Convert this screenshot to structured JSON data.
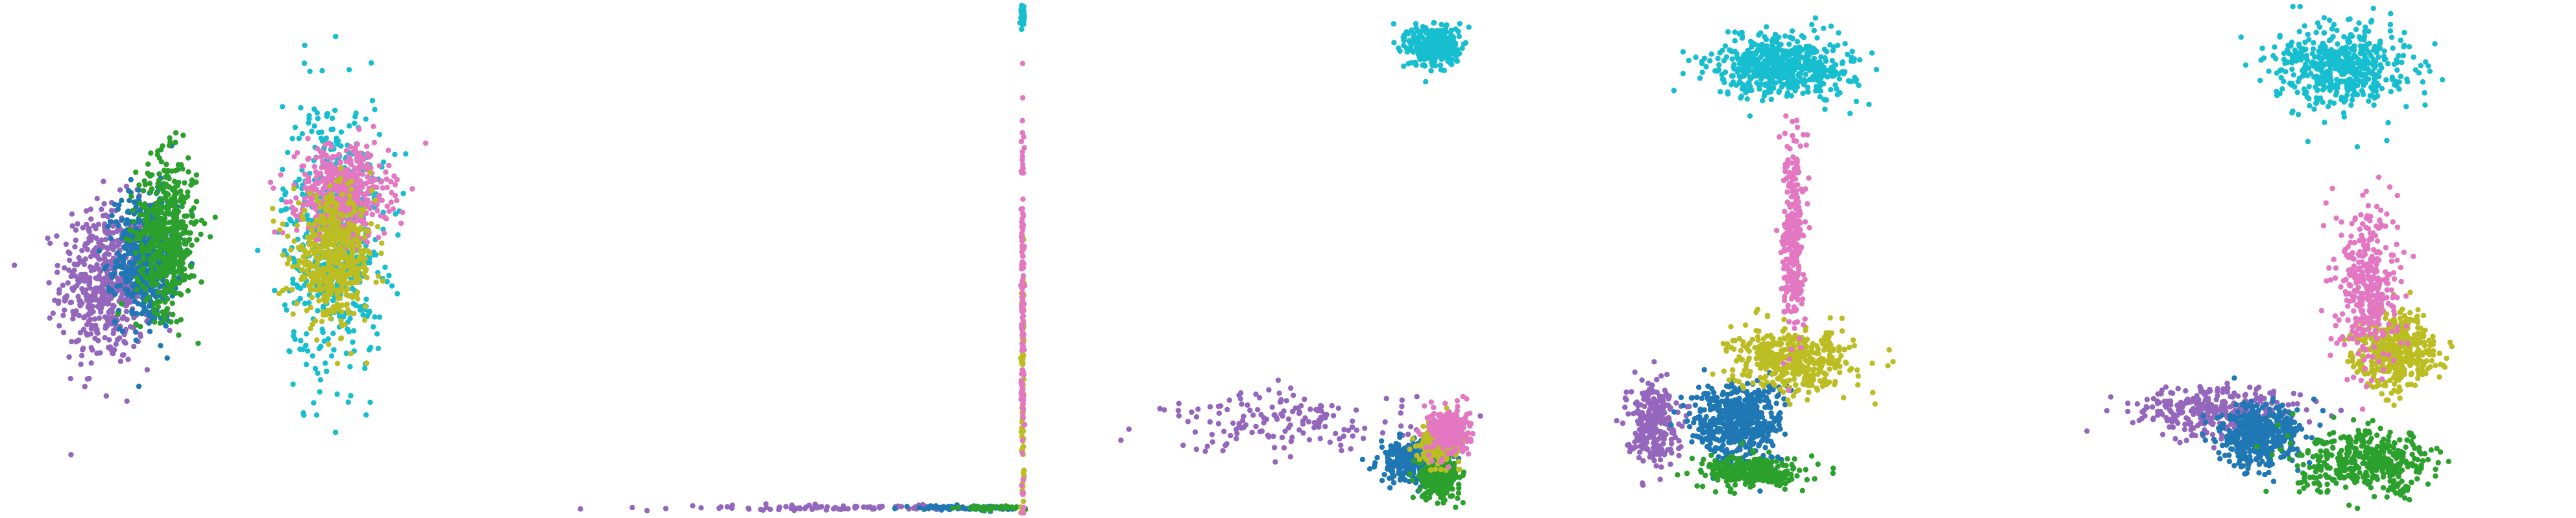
{
  "colors": {
    "purple": "#9467bd",
    "blue": "#1f77b4",
    "green": "#2ca02c",
    "cyan": "#17becf",
    "pink": "#e377c2",
    "olive": "#bcbd22"
  },
  "chart_data": [
    {
      "type": "scatter",
      "title": "",
      "xlabel": "",
      "ylabel": "",
      "axes": "hidden",
      "grid": false,
      "legend": "none",
      "xlim": [
        0,
        100
      ],
      "ylim": [
        0,
        100
      ],
      "clusters": [
        {
          "color": "purple",
          "center": [
            20,
            45
          ],
          "spread": [
            9,
            16
          ],
          "count": 520
        },
        {
          "color": "blue",
          "center": [
            28,
            50
          ],
          "spread": [
            6,
            13
          ],
          "count": 520
        },
        {
          "color": "green",
          "center": [
            32,
            55
          ],
          "spread": [
            6,
            15
          ],
          "count": 520
        },
        {
          "color": "cyan",
          "center": [
            65,
            55
          ],
          "spread": [
            10,
            27
          ],
          "count": 560
        },
        {
          "color": "pink",
          "center": [
            67,
            63
          ],
          "spread": [
            9,
            9
          ],
          "count": 520
        },
        {
          "color": "olive",
          "center": [
            65,
            50
          ],
          "spread": [
            8,
            12
          ],
          "count": 520
        }
      ]
    },
    {
      "type": "scatter",
      "title": "",
      "xlabel": "",
      "ylabel": "",
      "axes": "hidden",
      "grid": false,
      "legend": "none",
      "xlim": [
        0,
        100
      ],
      "ylim": [
        0,
        100
      ],
      "clusters": [
        {
          "color": "purple",
          "center": [
            62,
            1
          ],
          "spread": [
            30,
            0.5
          ],
          "count": 90
        },
        {
          "color": "blue",
          "center": [
            88,
            1
          ],
          "spread": [
            10,
            0.4
          ],
          "count": 70
        },
        {
          "color": "green",
          "center": [
            93,
            1
          ],
          "spread": [
            6,
            0.4
          ],
          "count": 50
        },
        {
          "color": "olive",
          "center": [
            99.5,
            25
          ],
          "spread": [
            0.3,
            30
          ],
          "count": 90
        },
        {
          "color": "pink",
          "center": [
            99.5,
            40
          ],
          "spread": [
            0.3,
            40
          ],
          "count": 140
        },
        {
          "color": "cyan",
          "center": [
            99.5,
            98
          ],
          "spread": [
            0.3,
            2
          ],
          "count": 60
        }
      ]
    },
    {
      "type": "scatter",
      "title": "",
      "xlabel": "",
      "ylabel": "",
      "axes": "hidden",
      "grid": false,
      "legend": "none",
      "xlim": [
        0,
        100
      ],
      "ylim": [
        0,
        100
      ],
      "clusters": [
        {
          "color": "purple",
          "center": [
            50,
            18
          ],
          "spread": [
            25,
            6
          ],
          "count": 160
        },
        {
          "color": "blue",
          "center": [
            74,
            10
          ],
          "spread": [
            6,
            4
          ],
          "count": 260
        },
        {
          "color": "green",
          "center": [
            80,
            7
          ],
          "spread": [
            4,
            4
          ],
          "count": 260
        },
        {
          "color": "olive",
          "center": [
            80,
            14
          ],
          "spread": [
            4,
            4
          ],
          "count": 260
        },
        {
          "color": "pink",
          "center": [
            82,
            16
          ],
          "spread": [
            4,
            5
          ],
          "count": 220
        },
        {
          "color": "cyan",
          "center": [
            79,
            92
          ],
          "spread": [
            5,
            4
          ],
          "count": 360
        }
      ]
    },
    {
      "type": "scatter",
      "title": "",
      "xlabel": "",
      "ylabel": "",
      "axes": "hidden",
      "grid": false,
      "legend": "none",
      "xlim": [
        0,
        100
      ],
      "ylim": [
        0,
        100
      ],
      "clusters": [
        {
          "color": "purple",
          "center": [
            20,
            18
          ],
          "spread": [
            5,
            8
          ],
          "count": 260
        },
        {
          "color": "blue",
          "center": [
            37,
            18
          ],
          "spread": [
            9,
            8
          ],
          "count": 520
        },
        {
          "color": "green",
          "center": [
            40,
            8
          ],
          "spread": [
            10,
            3
          ],
          "count": 300
        },
        {
          "color": "olive",
          "center": [
            48,
            30
          ],
          "spread": [
            12,
            6
          ],
          "count": 420
        },
        {
          "color": "pink",
          "center": [
            48,
            55
          ],
          "spread": [
            2,
            20
          ],
          "count": 300
        },
        {
          "color": "cyan",
          "center": [
            46,
            88
          ],
          "spread": [
            14,
            6
          ],
          "count": 560
        }
      ]
    },
    {
      "type": "scatter",
      "title": "",
      "xlabel": "",
      "ylabel": "",
      "axes": "hidden",
      "grid": false,
      "legend": "none",
      "xlim": [
        0,
        100
      ],
      "ylim": [
        0,
        100
      ],
      "clusters": [
        {
          "color": "purple",
          "center": [
            30,
            20
          ],
          "spread": [
            16,
            5
          ],
          "count": 320
        },
        {
          "color": "blue",
          "center": [
            38,
            15
          ],
          "spread": [
            8,
            6
          ],
          "count": 420
        },
        {
          "color": "green",
          "center": [
            60,
            10
          ],
          "spread": [
            14,
            6
          ],
          "count": 420
        },
        {
          "color": "olive",
          "center": [
            65,
            32
          ],
          "spread": [
            8,
            7
          ],
          "count": 460
        },
        {
          "color": "pink",
          "center": [
            60,
            45
          ],
          "spread": [
            6,
            16
          ],
          "count": 360
        },
        {
          "color": "cyan",
          "center": [
            55,
            88
          ],
          "spread": [
            13,
            8
          ],
          "count": 520
        }
      ]
    }
  ]
}
